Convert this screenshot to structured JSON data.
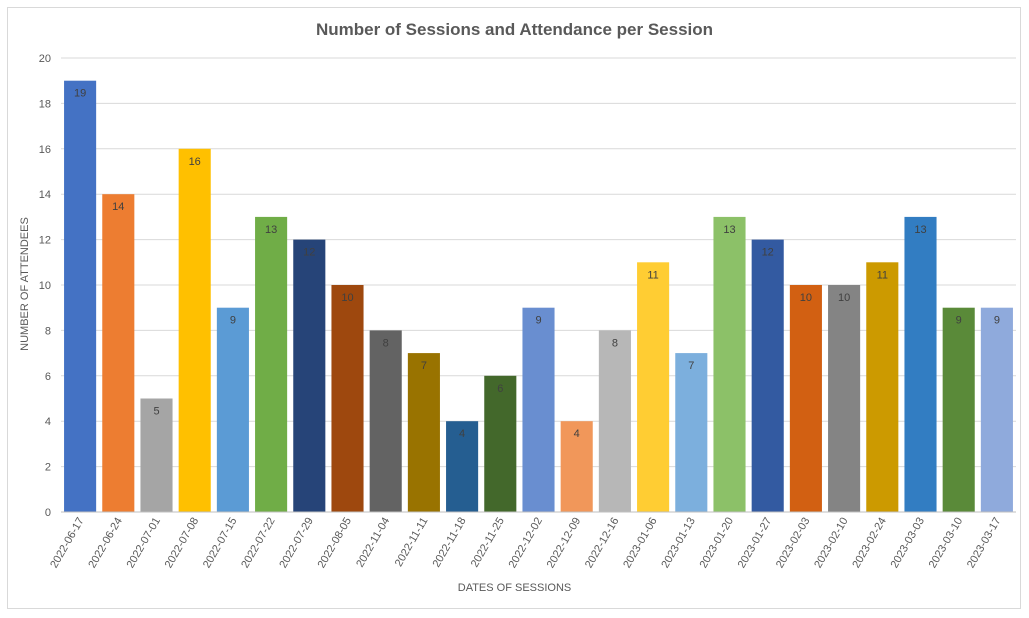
{
  "chart_data": {
    "type": "bar",
    "title": "Number of Sessions and Attendance per Session",
    "xlabel": "DATES OF SESSIONS",
    "ylabel": "NUMBER OF ATTENDEES",
    "ylim": [
      0,
      20
    ],
    "yticks": [
      0,
      2,
      4,
      6,
      8,
      10,
      12,
      14,
      16,
      18,
      20
    ],
    "grid": true,
    "legend": "none",
    "categories": [
      "2022-06-17",
      "2022-06-24",
      "2022-07-01",
      "2022-07-08",
      "2022-07-15",
      "2022-07-22",
      "2022-07-29",
      "2022-08-05",
      "2022-11-04",
      "2022-11-11",
      "2022-11-18",
      "2022-11-25",
      "2022-12-02",
      "2022-12-09",
      "2022-12-16",
      "2023-01-06",
      "2023-01-13",
      "2023-01-20",
      "2023-01-27",
      "2023-02-03",
      "2023-02-10",
      "2023-02-24",
      "2023-03-03",
      "2023-03-10",
      "2023-03-17"
    ],
    "values": [
      19,
      14,
      5,
      16,
      9,
      13,
      12,
      10,
      8,
      7,
      4,
      6,
      9,
      4,
      8,
      11,
      7,
      13,
      12,
      10,
      10,
      11,
      13,
      9,
      9
    ],
    "colors": [
      "#4472c4",
      "#ed7d31",
      "#a5a5a5",
      "#ffc000",
      "#5b9bd5",
      "#70ad47",
      "#264478",
      "#9e480e",
      "#636363",
      "#997300",
      "#255e91",
      "#43682b",
      "#698ed0",
      "#f1975a",
      "#b7b7b7",
      "#ffcd33",
      "#7cafdd",
      "#8cc168",
      "#335aa1",
      "#d26012",
      "#848484",
      "#cc9a00",
      "#327dc2",
      "#5a8a39",
      "#8faadc"
    ]
  }
}
